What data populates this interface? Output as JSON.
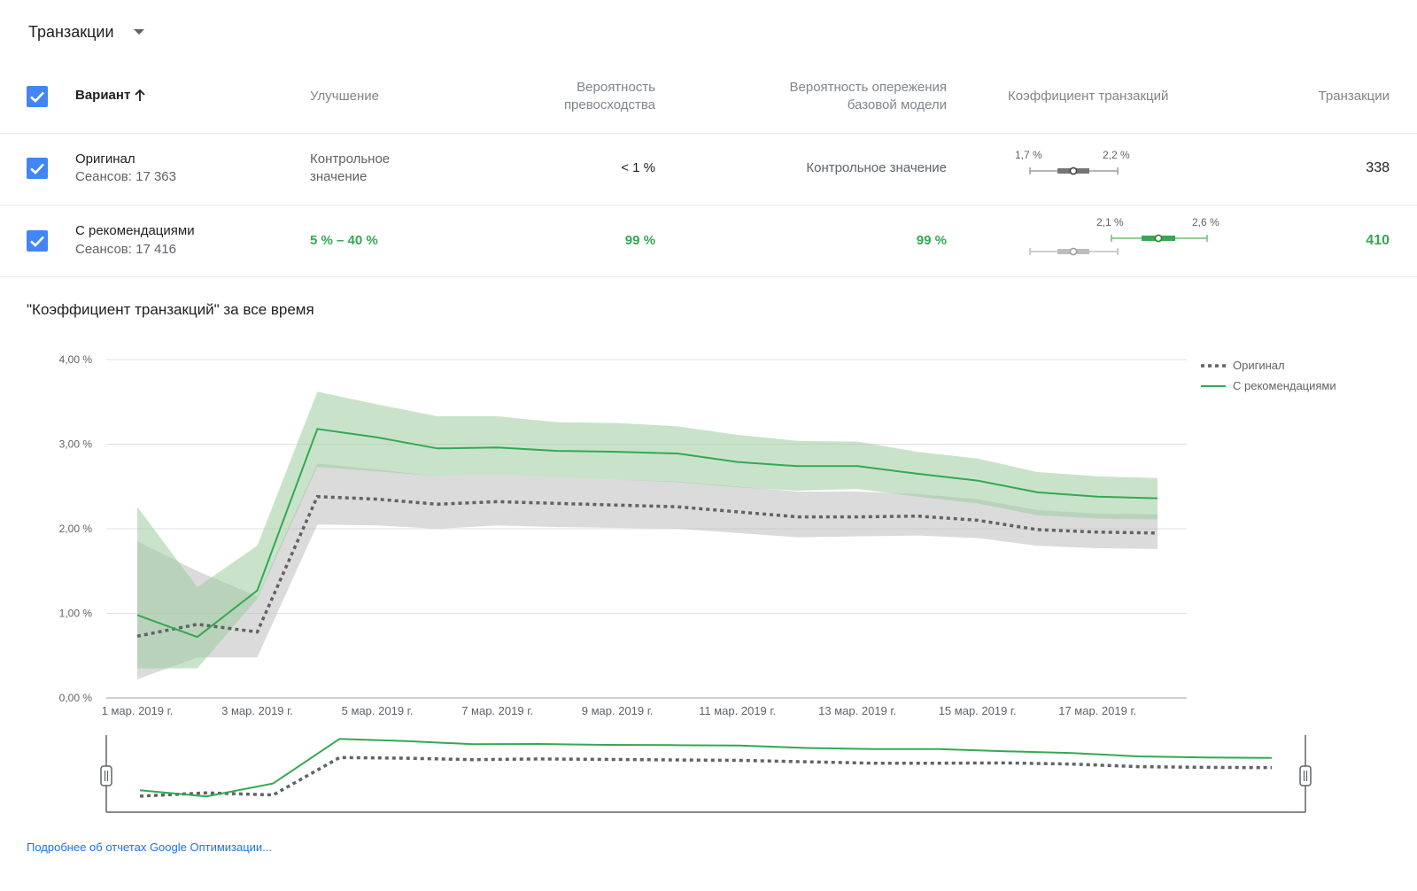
{
  "metric_selector": {
    "label": "Транзакции",
    "icon": "caret-down-icon"
  },
  "table": {
    "headers": {
      "variant": "Вариант",
      "variant_sort_icon": "arrow-up-icon",
      "improvement": "Улучшение",
      "prob_best_line1": "Вероятность",
      "prob_best_line2": "превосходства",
      "prob_beat_line1": "Вероятность опережения",
      "prob_beat_line2": "базовой модели",
      "rate": "Коэффициент транзакций",
      "transactions": "Транзакции"
    },
    "rows": [
      {
        "name": "Оригинал",
        "sessions": "Сеансов: 17 363",
        "improvement_line1": "Контрольное",
        "improvement_line2": "значение",
        "prob_best": "< 1 %",
        "prob_beat": "Контрольное значение",
        "ci_low_label": "1,7 %",
        "ci_high_label": "2,2 %",
        "ci": {
          "low": 1.7,
          "mid": 1.95,
          "high": 2.2
        },
        "transactions": "338",
        "checked": true
      },
      {
        "name": "С рекомендациями",
        "sessions": "Сеансов: 17 416",
        "improvement": "5 % – 40 %",
        "prob_best": "99 %",
        "prob_beat": "99 %",
        "ci_low_label": "2,1 %",
        "ci_high_label": "2,6 %",
        "ci": {
          "low": 2.1,
          "mid": 2.35,
          "high": 2.6
        },
        "transactions": "410",
        "checked": true
      }
    ]
  },
  "chart_title": "\"Коэффициент транзакций\" за все время",
  "chart_data": {
    "type": "line",
    "x": [
      "1 мар.",
      "2 мар.",
      "3 мар.",
      "4 мар.",
      "5 мар.",
      "6 мар.",
      "7 мар.",
      "8 мар.",
      "9 мар.",
      "10 мар.",
      "11 мар.",
      "12 мар.",
      "13 мар.",
      "14 мар.",
      "15 мар.",
      "16 мар.",
      "17 мар.",
      "18 мар."
    ],
    "x_tick_labels": [
      "1 мар. 2019 г.",
      "3 мар. 2019 г.",
      "5 мар. 2019 г.",
      "7 мар. 2019 г.",
      "9 мар. 2019 г.",
      "11 мар. 2019 г.",
      "13 мар. 2019 г.",
      "15 мар. 2019 г.",
      "17 мар. 2019 г."
    ],
    "y_tick_labels": [
      "0,00 %",
      "1,00 %",
      "2,00 %",
      "3,00 %",
      "4,00 %"
    ],
    "ylim": [
      0,
      4
    ],
    "grid": true,
    "legend_position": "top-right",
    "series": [
      {
        "name": "Оригинал",
        "style": "dotted",
        "color": "#5f6368",
        "band_color": "#bdbdbd",
        "values": [
          0.73,
          0.87,
          0.78,
          2.38,
          2.35,
          2.29,
          2.32,
          2.3,
          2.28,
          2.26,
          2.2,
          2.14,
          2.14,
          2.15,
          2.1,
          1.99,
          1.96,
          1.95
        ],
        "lower": [
          0.22,
          0.48,
          0.48,
          2.05,
          2.04,
          2.0,
          2.04,
          2.02,
          2.01,
          2.0,
          1.95,
          1.9,
          1.91,
          1.92,
          1.89,
          1.8,
          1.77,
          1.76
        ],
        "upper": [
          1.85,
          1.5,
          1.2,
          2.77,
          2.7,
          2.62,
          2.64,
          2.6,
          2.58,
          2.56,
          2.5,
          2.44,
          2.44,
          2.41,
          2.35,
          2.22,
          2.18,
          2.17
        ]
      },
      {
        "name": "С рекомендациями",
        "style": "solid",
        "color": "#34a853",
        "band_color": "#9ccc9f",
        "values": [
          0.98,
          0.72,
          1.27,
          3.18,
          3.08,
          2.95,
          2.96,
          2.92,
          2.91,
          2.89,
          2.79,
          2.74,
          2.74,
          2.65,
          2.57,
          2.43,
          2.38,
          2.36
        ],
        "lower": [
          0.35,
          0.35,
          1.17,
          2.73,
          2.68,
          2.62,
          2.64,
          2.6,
          2.58,
          2.55,
          2.49,
          2.45,
          2.47,
          2.38,
          2.3,
          2.16,
          2.12,
          2.11
        ],
        "upper": [
          2.26,
          1.31,
          1.8,
          3.62,
          3.47,
          3.33,
          3.33,
          3.26,
          3.25,
          3.21,
          3.11,
          3.04,
          3.03,
          2.91,
          2.83,
          2.67,
          2.62,
          2.6
        ]
      }
    ]
  },
  "navigator": {
    "left_handle_icon": "range-handle-left-icon",
    "right_handle_icon": "range-handle-right-icon"
  },
  "footer_link": "Подробнее об отчетах Google Оптимизации..."
}
